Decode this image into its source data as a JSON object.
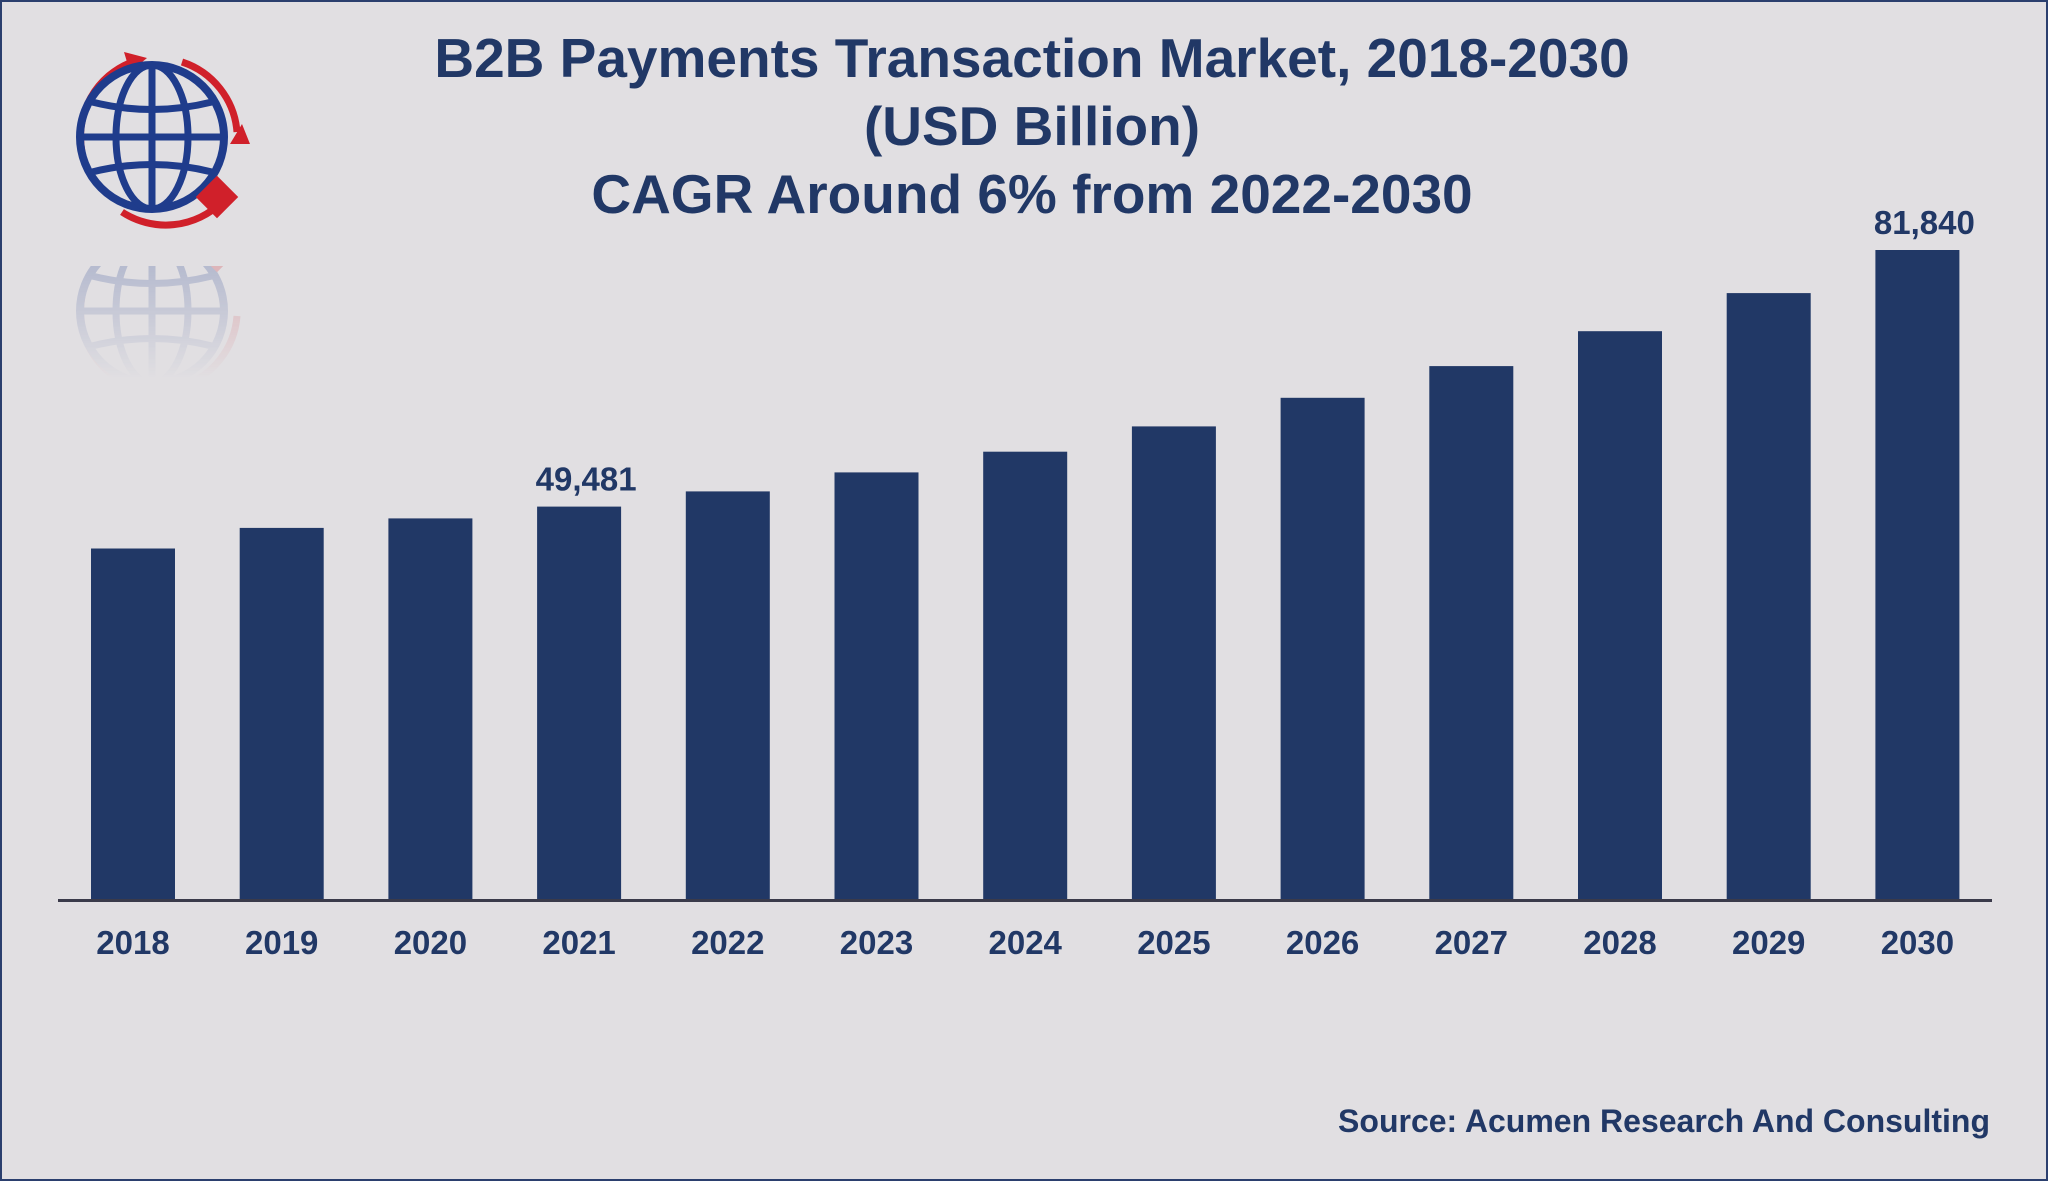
{
  "title_lines": [
    "B2B Payments Transaction Market, 2018-2030",
    "(USD Billion)",
    "CAGR Around 6% from 2022-2030"
  ],
  "source": "Source: Acumen Research And Consulting",
  "colors": {
    "background": "#e1dfe2",
    "bar": "#213866",
    "text": "#213866",
    "axis": "#3a3a4a",
    "logo_blue": "#1f3c8c",
    "logo_red": "#d0202a"
  },
  "logo_icon": "globe-with-arrows-icon",
  "chart_data": {
    "type": "bar",
    "title": "B2B Payments Transaction Market, 2018-2030 (USD Billion) CAGR Around 6% from 2022-2030",
    "categories": [
      "2018",
      "2019",
      "2020",
      "2021",
      "2022",
      "2023",
      "2024",
      "2025",
      "2026",
      "2027",
      "2028",
      "2029",
      "2030"
    ],
    "values": [
      44200,
      46800,
      48000,
      49481,
      51400,
      53800,
      56400,
      59600,
      63200,
      67200,
      71600,
      76400,
      81840
    ],
    "data_labels": [
      {
        "category": "2021",
        "text": "49,481"
      },
      {
        "category": "2030",
        "text": "81,840"
      }
    ],
    "xlabel": "",
    "ylabel": "",
    "ylim": [
      0,
      81840
    ],
    "grid": false,
    "legend": "none"
  }
}
